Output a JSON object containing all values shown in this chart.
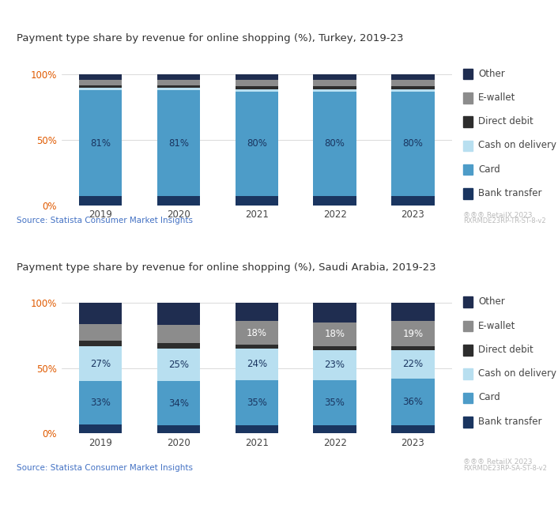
{
  "turkey": {
    "title": "Payment type share by revenue for online shopping (%), Turkey, 2019-23",
    "years": [
      "2019",
      "2020",
      "2021",
      "2022",
      "2023"
    ],
    "bank_transfer": [
      7,
      7,
      7,
      7,
      7
    ],
    "card": [
      81,
      81,
      80,
      80,
      80
    ],
    "cash_on_delivery": [
      2,
      2,
      2,
      2,
      2
    ],
    "direct_debit": [
      2,
      2,
      2,
      2,
      2
    ],
    "e_wallet": [
      4,
      4,
      5,
      5,
      5
    ],
    "other": [
      4,
      4,
      4,
      4,
      4
    ],
    "card_labels": [
      "81%",
      "81%",
      "80%",
      "80%",
      "80%"
    ]
  },
  "saudi": {
    "title": "Payment type share by revenue for online shopping (%), Saudi Arabia, 2019-23",
    "years": [
      "2019",
      "2020",
      "2021",
      "2022",
      "2023"
    ],
    "bank_transfer": [
      7,
      6,
      6,
      6,
      6
    ],
    "card": [
      33,
      34,
      35,
      35,
      36
    ],
    "cash_on_delivery": [
      27,
      25,
      24,
      23,
      22
    ],
    "direct_debit": [
      4,
      4,
      3,
      3,
      3
    ],
    "e_wallet": [
      13,
      14,
      18,
      18,
      19
    ],
    "other": [
      16,
      17,
      14,
      15,
      14
    ],
    "card_labels": [
      "33%",
      "34%",
      "35%",
      "35%",
      "36%"
    ],
    "cod_labels": [
      "27%",
      "25%",
      "24%",
      "23%",
      "22%"
    ],
    "ewallet_labels": [
      "",
      "",
      "18%",
      "18%",
      "19%"
    ]
  },
  "colors": {
    "bank_transfer": "#1a3560",
    "card": "#4d9cc8",
    "cash_on_delivery": "#b8dff0",
    "direct_debit": "#2d2d2d",
    "e_wallet": "#8c8c8c",
    "other": "#1f2d50"
  },
  "legend_items": [
    [
      "Other",
      "#1f2d50"
    ],
    [
      "E-wallet",
      "#8c8c8c"
    ],
    [
      "Direct debit",
      "#2d2d2d"
    ],
    [
      "Cash on delivery",
      "#b8dff0"
    ],
    [
      "Card",
      "#4d9cc8"
    ],
    [
      "Bank transfer",
      "#1a3560"
    ]
  ],
  "source_text": "Source: Statista Consumer Market Insights",
  "watermark1": "®®® RetailX 2023",
  "watermark2_turkey": "RXRMDE23RP-TR-ST-8-v2",
  "watermark2_saudi": "RXRMDE23RP-SA-ST-8-v2",
  "ytick_labels": [
    "0%",
    "50%",
    "100%"
  ],
  "ytick_positions": [
    0,
    50,
    100
  ],
  "bar_width": 0.55,
  "background_color": "#ffffff",
  "orange_color": "#e05a00",
  "blue_link_color": "#4472c4",
  "label_dark": "#1a3560",
  "label_white": "#ffffff",
  "label_fontsize": 8.5,
  "axis_fontsize": 8.5,
  "title_fontsize": 9.5,
  "legend_fontsize": 8.5,
  "source_fontsize": 7.5,
  "watermark_fontsize1": 6.5,
  "watermark_fontsize2": 6.0
}
